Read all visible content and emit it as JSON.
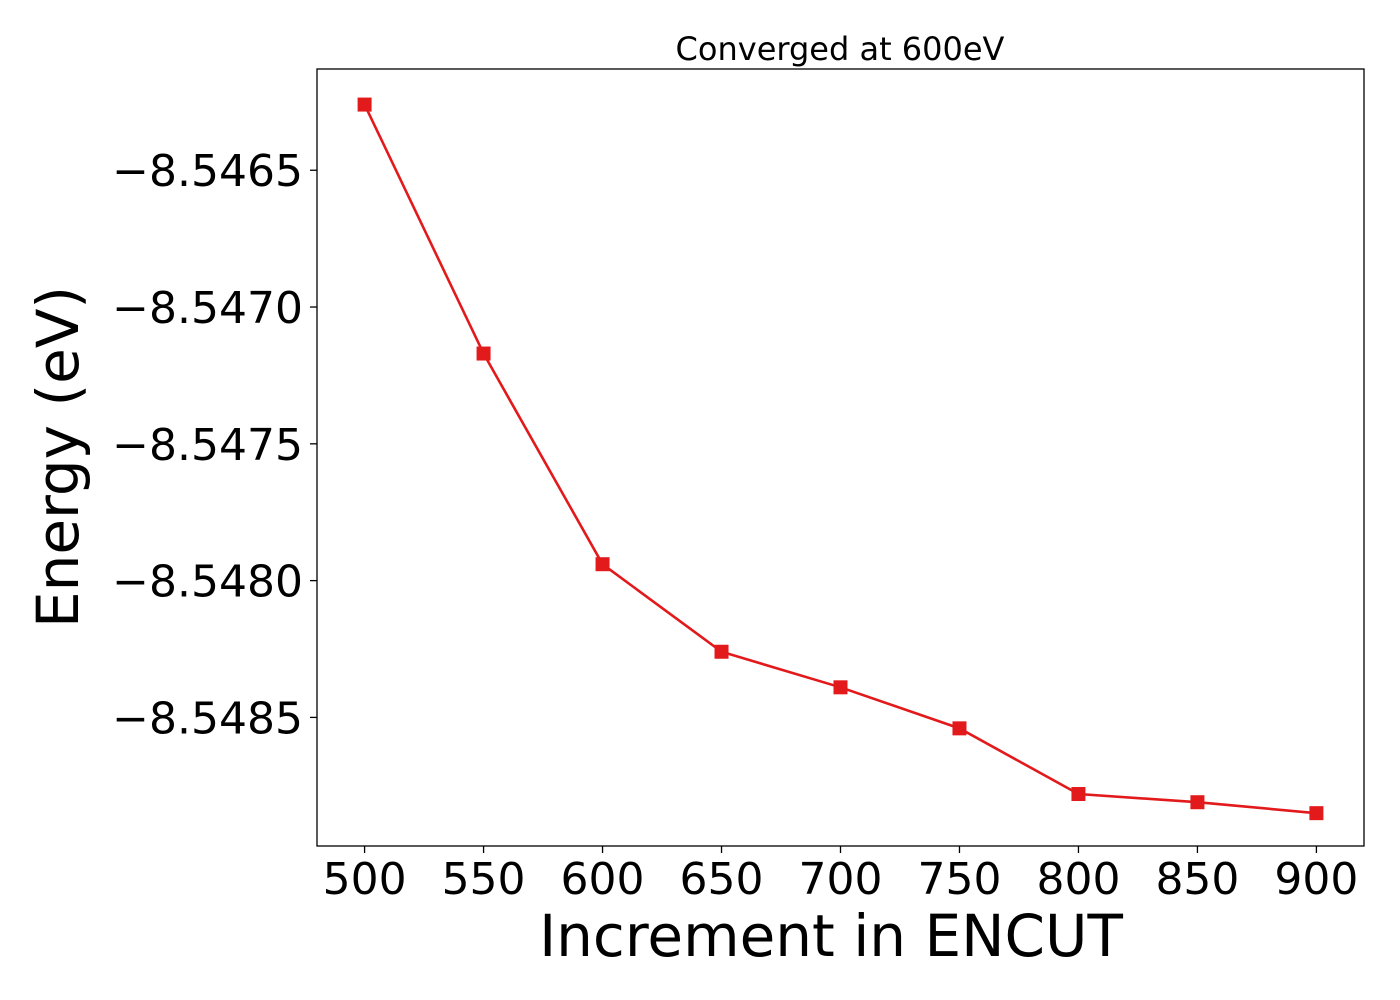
{
  "chart_data": {
    "type": "line",
    "title": "Converged at 600eV",
    "xlabel": "Increment in ENCUT",
    "ylabel": "Energy (eV)",
    "x": [
      500,
      550,
      600,
      650,
      700,
      750,
      800,
      850,
      900
    ],
    "series": [
      {
        "values": [
          -8.54626,
          -8.54717,
          -8.54794,
          -8.54826,
          -8.54839,
          -8.54854,
          -8.54878,
          -8.54881,
          -8.54885
        ],
        "color": "#e31a1c",
        "marker": "square"
      }
    ],
    "xticks": [
      500,
      550,
      600,
      650,
      700,
      750,
      800,
      850,
      900
    ],
    "xtick_labels": [
      "500",
      "550",
      "600",
      "650",
      "700",
      "750",
      "800",
      "850",
      "900"
    ],
    "yticks": [
      -8.5465,
      -8.547,
      -8.5475,
      -8.548,
      -8.5485
    ],
    "ytick_labels": [
      "−8.5465",
      "−8.5470",
      "−8.5475",
      "−8.5480",
      "−8.5485"
    ],
    "xlim": [
      480,
      920
    ],
    "ylim": [
      -8.54897,
      -8.54613
    ],
    "grid": false,
    "legend": "none"
  }
}
